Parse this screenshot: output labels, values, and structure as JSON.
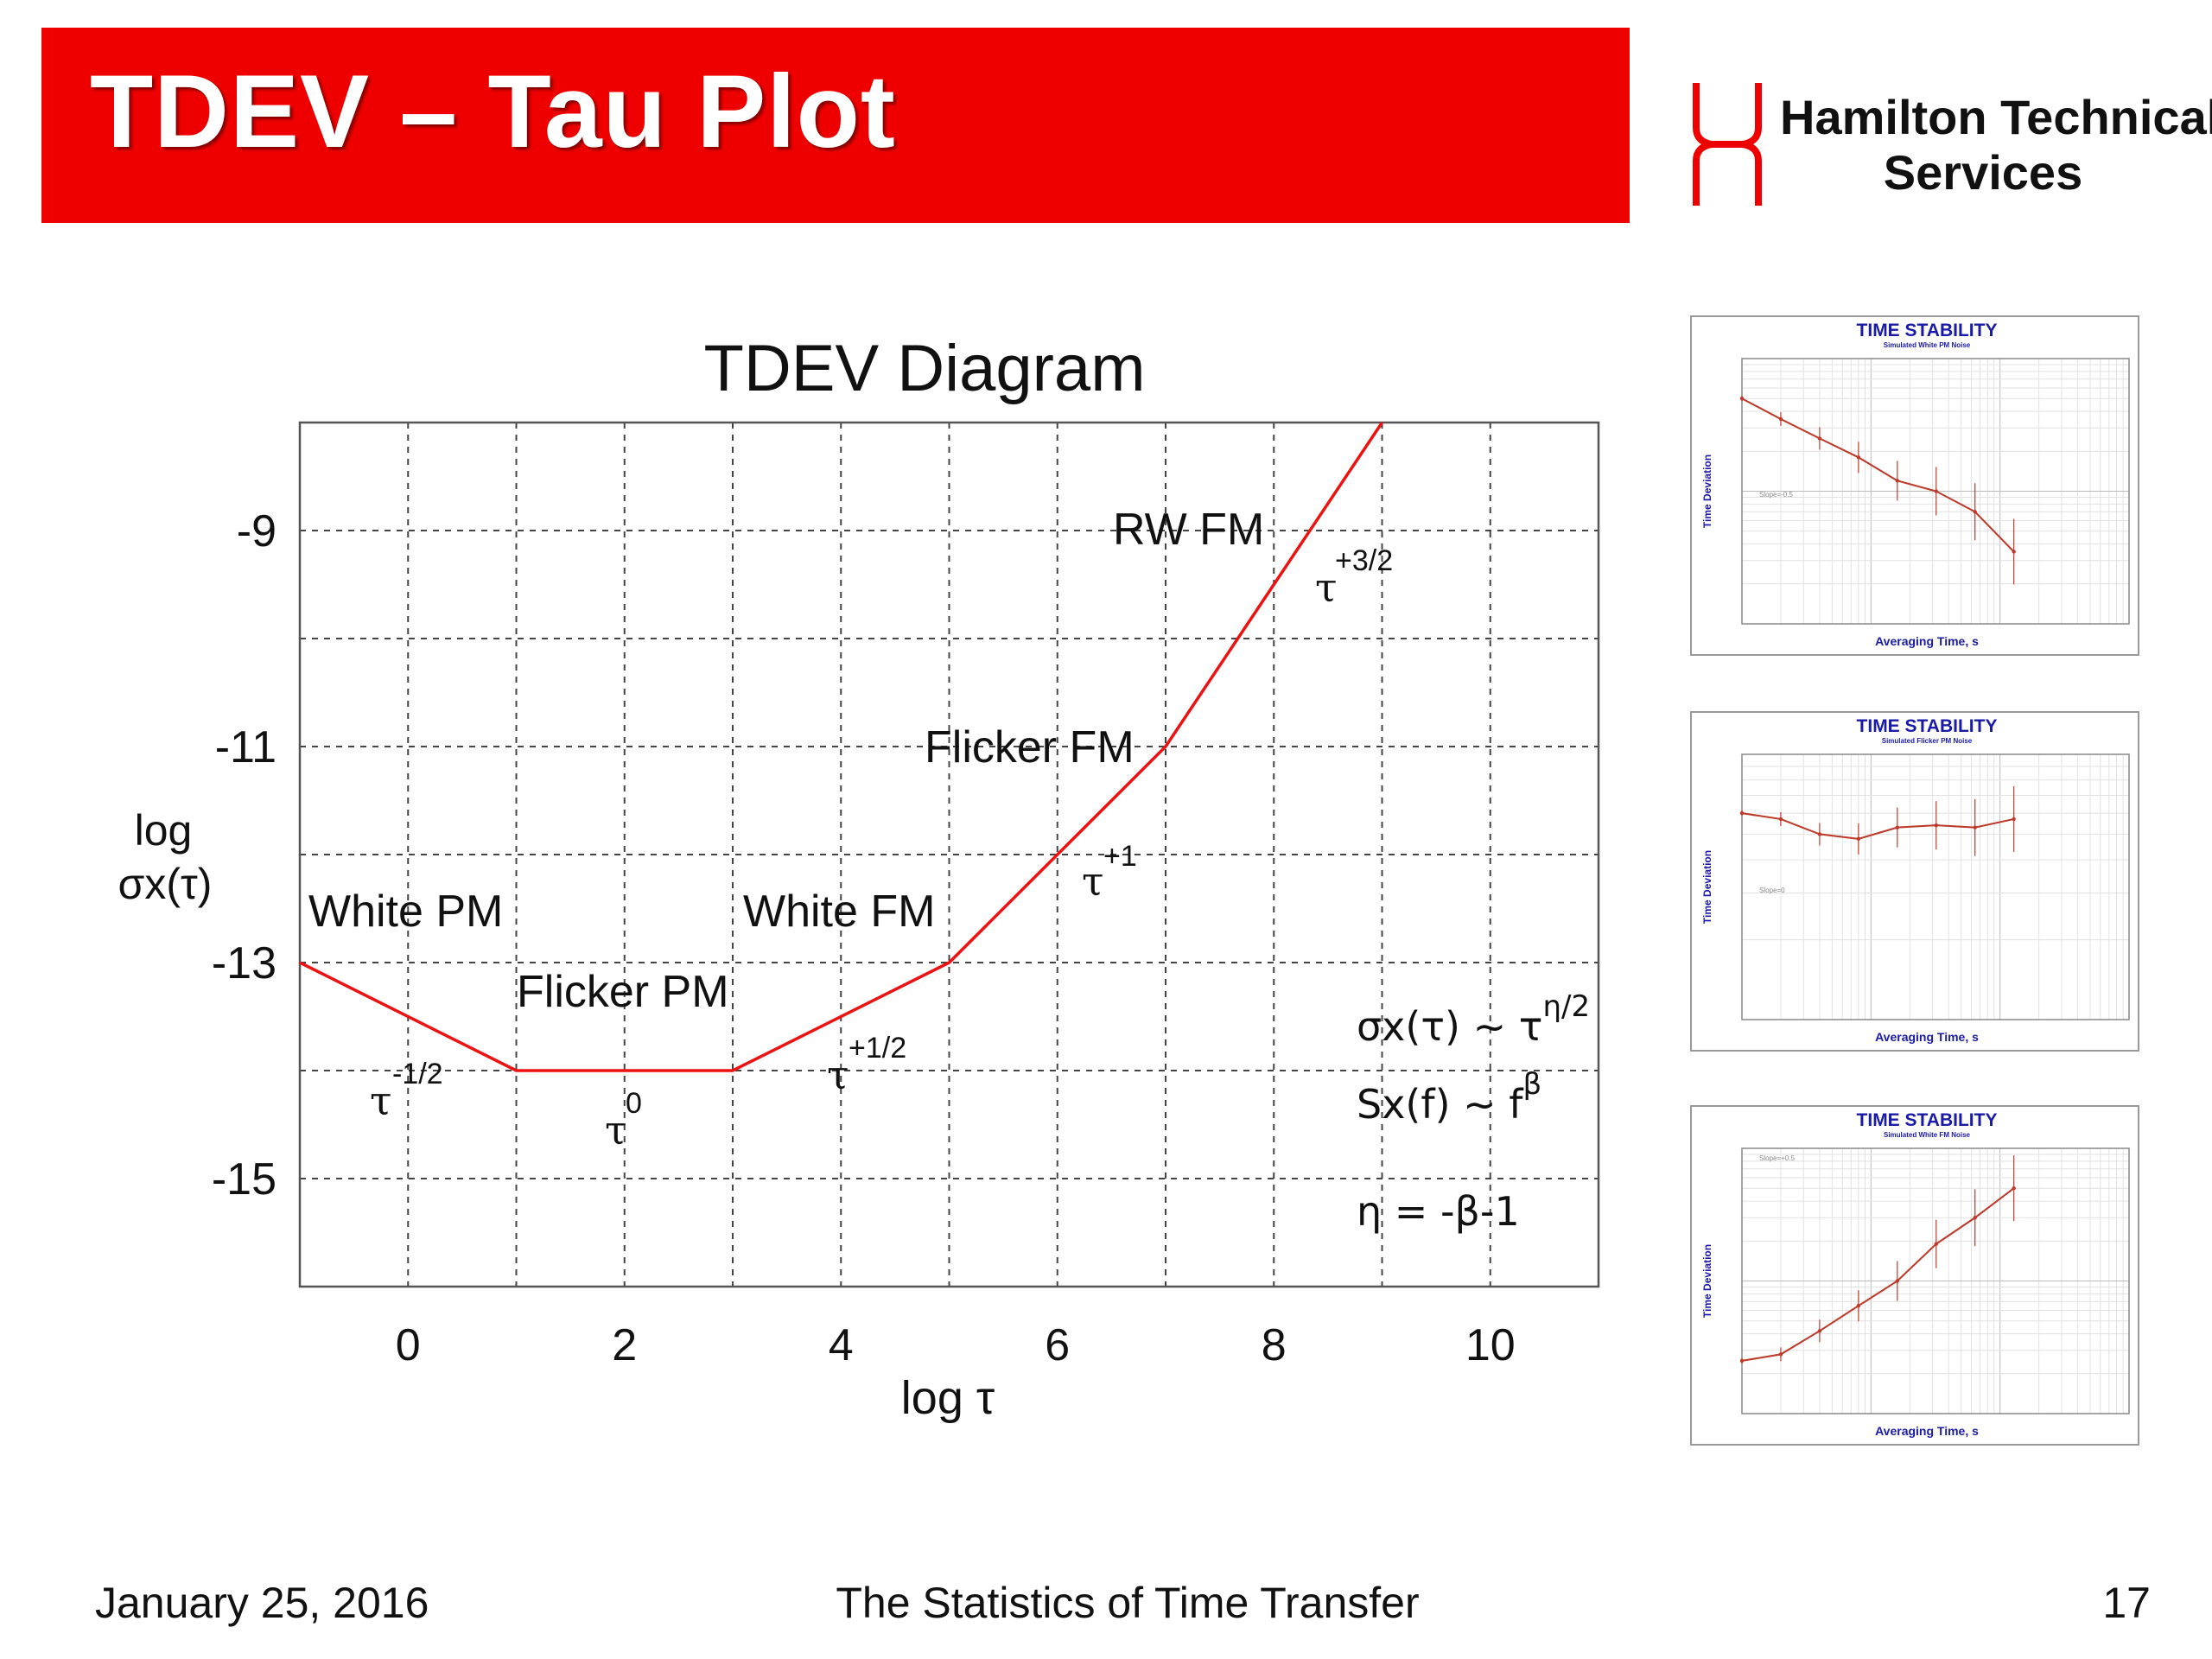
{
  "slide": {
    "title": "TDEV – Tau Plot",
    "brand_color": "#ee0000",
    "logo": {
      "icon": "hamilton-logo-icon",
      "name_lines": [
        "Hamilton Technical",
        "Services"
      ]
    },
    "footer": {
      "date": "January 25, 2016",
      "center": "The Statistics of Time Transfer",
      "page": "17"
    }
  },
  "chart_data": [
    {
      "type": "line",
      "title": "TDEV Diagram",
      "xlabel": "log τ",
      "ylabel_lines": [
        "log",
        "σx(τ)"
      ],
      "xlim": [
        -1,
        11
      ],
      "ylim": [
        -16,
        -8
      ],
      "xticks": [
        0,
        2,
        4,
        6,
        8,
        10
      ],
      "yticks": [
        -9,
        -11,
        -13,
        -15
      ],
      "grid": true,
      "line_color": "#ee1111",
      "series": [
        {
          "x": [
            -1,
            1,
            3,
            5,
            7,
            9
          ],
          "y": [
            -13,
            -14,
            -14,
            -13,
            -11,
            -8
          ]
        }
      ],
      "regions": [
        {
          "label": "White PM",
          "slope": "-1/2"
        },
        {
          "label": "Flicker PM",
          "slope": "0"
        },
        {
          "label": "White FM",
          "slope": "+1/2"
        },
        {
          "label": "Flicker FM",
          "slope": "+1"
        },
        {
          "label": "RW FM",
          "slope": "+3/2"
        }
      ],
      "slope_base": "τ",
      "formulas": {
        "f1_main": "σx(τ) ~ τ",
        "f1_sup": "η/2",
        "f2_main": "Sx(f) ~ f",
        "f2_sup": "β",
        "f3": "η = -β-1"
      }
    },
    {
      "type": "line",
      "title": "TIME STABILITY",
      "subtitle": "Simulated White PM Noise",
      "xlabel": "Averaging Time, s",
      "ylabel": "Time Deviation",
      "log_scale": true,
      "xlim": [
        1,
        1000
      ],
      "ylim": [
        0.01,
        1
      ],
      "slope_label": "Slope=-0.5",
      "series": [
        {
          "x": [
            1,
            2,
            4,
            8,
            16,
            32,
            64,
            128
          ],
          "y": [
            0.5,
            0.35,
            0.25,
            0.18,
            0.12,
            0.1,
            0.07,
            0.035
          ]
        }
      ]
    },
    {
      "type": "line",
      "title": "TIME STABILITY",
      "subtitle": "Simulated Flicker PM Noise",
      "xlabel": "Averaging Time, s",
      "ylabel": "Time Deviation",
      "log_scale": true,
      "xlim": [
        1,
        1000
      ],
      "ylim": [
        0.1,
        1
      ],
      "slope_label": "Slope=0",
      "series": [
        {
          "x": [
            1,
            2,
            4,
            8,
            16,
            32,
            64,
            128
          ],
          "y": [
            0.6,
            0.57,
            0.5,
            0.48,
            0.53,
            0.54,
            0.53,
            0.57
          ]
        }
      ]
    },
    {
      "type": "line",
      "title": "TIME STABILITY",
      "subtitle": "Simulated White FM Noise",
      "xlabel": "Averaging Time, s",
      "ylabel": "Time Deviation",
      "log_scale": true,
      "xlim": [
        1,
        1000
      ],
      "ylim": [
        0.1,
        10
      ],
      "slope_label": "Slope=+0.5",
      "series": [
        {
          "x": [
            1,
            2,
            4,
            8,
            16,
            32,
            64,
            128
          ],
          "y": [
            0.25,
            0.28,
            0.42,
            0.65,
            1.0,
            1.9,
            3.0,
            5.0
          ]
        }
      ]
    }
  ]
}
